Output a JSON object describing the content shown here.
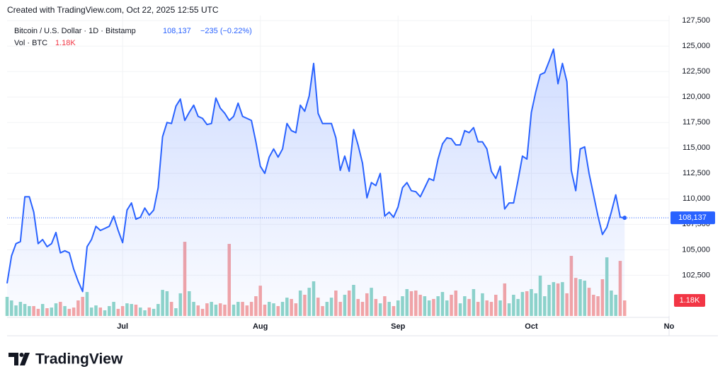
{
  "header": {
    "created": "Created with TradingView.com, Oct 22, 2025 12:55 UTC"
  },
  "footer": {
    "brand": "TradingView"
  },
  "chart_data": {
    "type": "line",
    "title": "Bitcoin / U.S. Dollar · 1D · Bitstamp",
    "last_label": "108,137",
    "change_label": "−235 (−0.22%)",
    "xlim": [
      0,
      149
    ],
    "xticks": [
      {
        "value": 26,
        "label": "Jul"
      },
      {
        "value": 57,
        "label": "Aug"
      },
      {
        "value": 88,
        "label": "Sep"
      },
      {
        "value": 118,
        "label": "Oct"
      },
      {
        "value": 149,
        "label": "No"
      }
    ],
    "ylim": [
      98500,
      128000
    ],
    "yticks": [
      {
        "value": 102500,
        "label": "102,500"
      },
      {
        "value": 105000,
        "label": "105,000"
      },
      {
        "value": 107500,
        "label": "107,500"
      },
      {
        "value": 110000,
        "label": "110,000"
      },
      {
        "value": 112500,
        "label": "112,500"
      },
      {
        "value": 115000,
        "label": "115,000"
      },
      {
        "value": 117500,
        "label": "117,500"
      },
      {
        "value": 120000,
        "label": "120,000"
      },
      {
        "value": 122500,
        "label": "122,500"
      },
      {
        "value": 125000,
        "label": "125,000"
      },
      {
        "value": 127500,
        "label": "127,500"
      }
    ],
    "y2lim": [
      0,
      22800
    ],
    "grid": true,
    "series": [
      {
        "name": "Bitcoin / U.S. Dollar · 1D · Bitstamp",
        "type": "area",
        "color": "#2962ff",
        "values": [
          101700,
          104400,
          105600,
          105800,
          110200,
          110200,
          108700,
          105600,
          106000,
          105300,
          105600,
          106700,
          104700,
          104900,
          104700,
          103100,
          101900,
          100900,
          105300,
          106000,
          107300,
          106900,
          107100,
          107300,
          108300,
          106900,
          105700,
          108900,
          109600,
          108000,
          108200,
          109100,
          108400,
          108900,
          111100,
          116100,
          117500,
          117400,
          119100,
          119800,
          117700,
          118500,
          119200,
          118100,
          117900,
          117300,
          117400,
          119900,
          118900,
          118400,
          117700,
          118100,
          119400,
          118100,
          117900,
          117700,
          115600,
          113200,
          112500,
          114100,
          114900,
          114100,
          114900,
          117400,
          116700,
          116500,
          119200,
          118600,
          120100,
          123300,
          118400,
          117400,
          117400,
          117400,
          116000,
          112800,
          114200,
          112700,
          116800,
          115300,
          113500,
          110100,
          111600,
          111300,
          112500,
          108300,
          108700,
          108200,
          109200,
          111100,
          111600,
          110800,
          110700,
          110200,
          111100,
          112000,
          111800,
          113900,
          115400,
          116000,
          115900,
          115300,
          115300,
          116700,
          116500,
          117000,
          115600,
          115600,
          114900,
          112700,
          112000,
          113200,
          109000,
          109600,
          109600,
          111800,
          114200,
          113900,
          118500,
          120500,
          122200,
          122400,
          123500,
          124700,
          121300,
          123300,
          121500,
          112800,
          110800,
          114900,
          115100,
          112500,
          110400,
          108300,
          106500,
          107200,
          108700,
          110400,
          108200,
          108137
        ]
      },
      {
        "name": "Vol · BTC",
        "type": "bar",
        "axis": "y2",
        "up_color": "#8fd5c9",
        "down_color": "#f5a5a5",
        "last_label": "1.18K",
        "values": [
          1450,
          1180,
          800,
          1070,
          910,
          750,
          750,
          540,
          910,
          590,
          640,
          960,
          1070,
          750,
          540,
          640,
          1180,
          1450,
          1820,
          640,
          800,
          640,
          430,
          750,
          1070,
          540,
          750,
          960,
          910,
          860,
          640,
          430,
          640,
          540,
          910,
          1980,
          1880,
          1070,
          590,
          1720,
          5630,
          1880,
          1070,
          800,
          540,
          960,
          1070,
          860,
          960,
          860,
          5470,
          860,
          1070,
          1070,
          800,
          1070,
          1500,
          2300,
          860,
          1070,
          960,
          750,
          1070,
          1390,
          1290,
          960,
          1930,
          1610,
          2140,
          2630,
          1390,
          750,
          1070,
          1390,
          1930,
          1070,
          1610,
          1930,
          2360,
          1290,
          1070,
          1720,
          2140,
          1290,
          960,
          1500,
          1070,
          750,
          1180,
          1500,
          2040,
          1880,
          1930,
          1610,
          1500,
          1180,
          1290,
          1500,
          1820,
          1180,
          1610,
          1930,
          960,
          1500,
          1290,
          2040,
          1070,
          1720,
          1180,
          1070,
          1610,
          1180,
          2470,
          960,
          1610,
          1290,
          1820,
          1880,
          2040,
          1720,
          3060,
          1500,
          2360,
          2570,
          2470,
          2570,
          1720,
          4560,
          2890,
          2790,
          2680,
          2140,
          1610,
          1500,
          2790,
          4450,
          1930,
          1610,
          4180,
          1180
        ]
      }
    ]
  }
}
